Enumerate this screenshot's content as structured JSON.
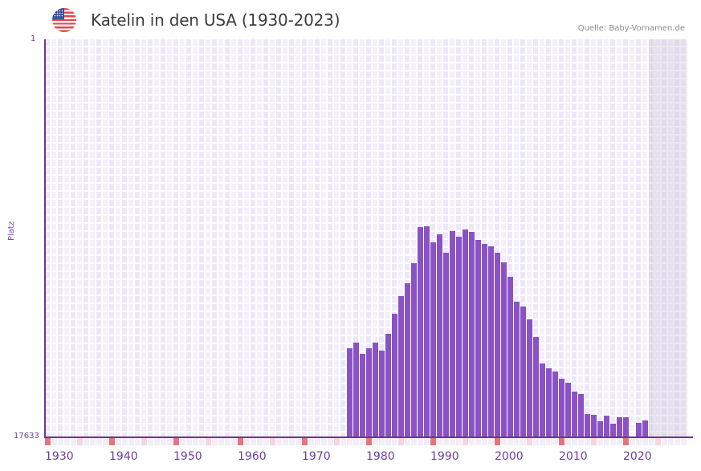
{
  "header": {
    "title": "Katelin in den USA (1930-2023)",
    "source": "Quelle: Baby-Vornamen.de",
    "flag_icon": "us-flag-icon"
  },
  "colors": {
    "bar": "#8a52c6",
    "axis": "#6a3596",
    "decade_marker": "#e8737a",
    "half_decade_marker": "#f4d6e0",
    "grid_cell_dark": "#ece8f8",
    "grid_cell_light": "#f3f0fb",
    "tick_text": "#6a3fa0"
  },
  "chart_data": {
    "type": "bar",
    "title": "Katelin in den USA (1930-2023)",
    "xlabel": "",
    "ylabel": "Platz",
    "y_inverted": true,
    "ylim": [
      1,
      17633
    ],
    "y_ticks": [
      "1",
      "17633"
    ],
    "x_range": [
      1930,
      2029
    ],
    "x_ticks": [
      "1930",
      "1940",
      "1950",
      "1960",
      "1970",
      "1980",
      "1990",
      "2000",
      "2010",
      "2020"
    ],
    "grid": true,
    "future_shaded_from": 2024,
    "categories": [
      1977,
      1978,
      1979,
      1980,
      1981,
      1982,
      1983,
      1984,
      1985,
      1986,
      1987,
      1988,
      1989,
      1990,
      1991,
      1992,
      1993,
      1994,
      1995,
      1996,
      1997,
      1998,
      1999,
      2000,
      2001,
      2002,
      2003,
      2004,
      2005,
      2006,
      2007,
      2008,
      2009,
      2010,
      2011,
      2012,
      2013,
      2014,
      2015,
      2016,
      2017,
      2018,
      2019,
      2020,
      2022,
      2023
    ],
    "series": [
      {
        "name": "Platz",
        "values": [
          13687,
          13438,
          13936,
          13687,
          13438,
          13794,
          13047,
          12159,
          11377,
          10808,
          9919,
          8319,
          8284,
          8995,
          8639,
          9457,
          8497,
          8746,
          8426,
          8533,
          8888,
          9066,
          9173,
          9457,
          9884,
          10523,
          11625,
          11839,
          12408,
          13190,
          14363,
          14576,
          14718,
          15038,
          15216,
          15607,
          15714,
          16603,
          16638,
          16923,
          16674,
          17029,
          16745,
          16745,
          16994,
          16887
        ]
      }
    ]
  }
}
